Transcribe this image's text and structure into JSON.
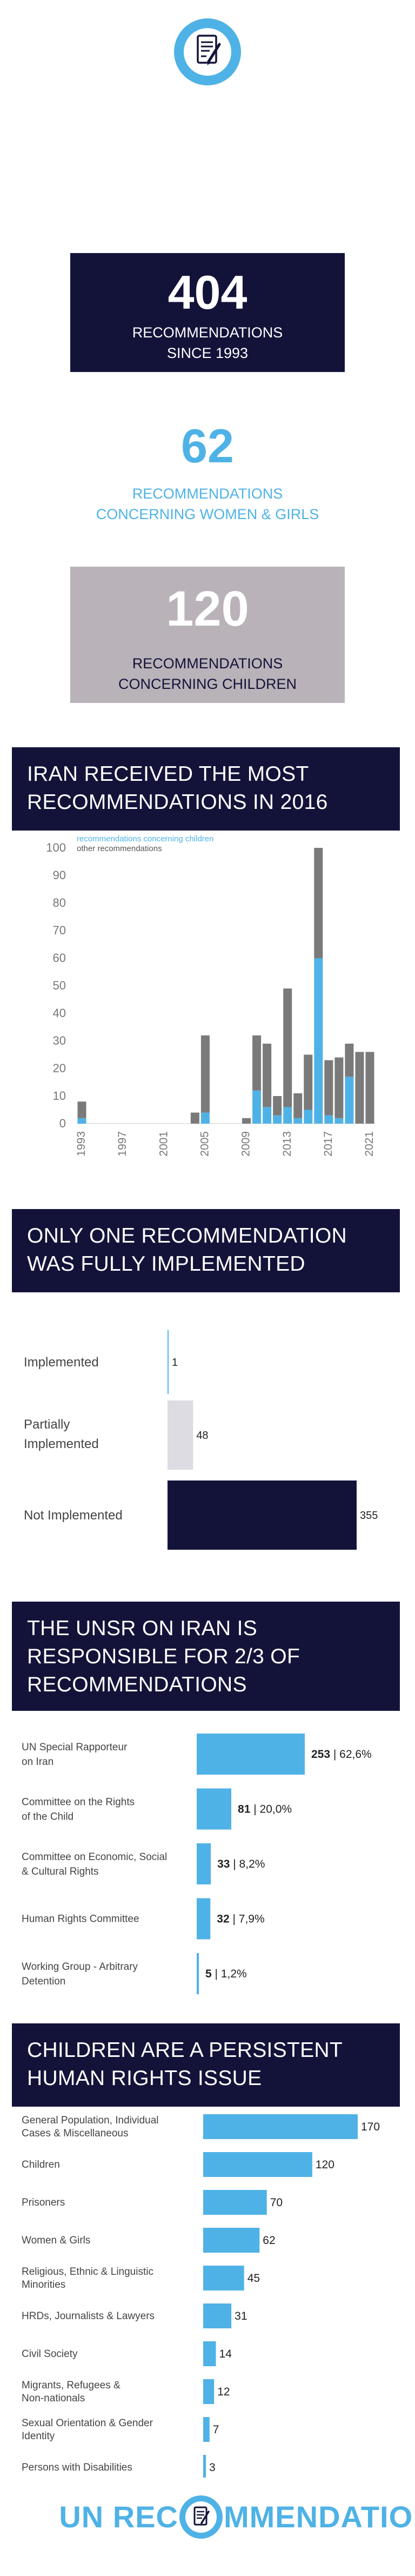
{
  "icon": "document-pen-icon",
  "colors": {
    "navy": "#13133a",
    "blue": "#4fb2e6",
    "gray": "#b9b2b8",
    "bargray": "#7a7a7a",
    "lightgray": "#dcdce2"
  },
  "stats": [
    {
      "number": "404",
      "line1": "RECOMMENDATIONS",
      "line2": "SINCE 1993"
    },
    {
      "number": "62",
      "line1": "RECOMMENDATIONS",
      "line2": "CONCERNING WOMEN & GIRLS"
    },
    {
      "number": "120",
      "line1": "RECOMMENDATIONS",
      "line2": "CONCERNING CHILDREN"
    }
  ],
  "sections": [
    {
      "line1": "IRAN RECEIVED THE MOST",
      "line2": "RECOMMENDATIONS IN 2016"
    },
    {
      "line1": "ONLY ONE RECOMMENDATION",
      "line2": "WAS FULLY IMPLEMENTED"
    },
    {
      "line1": "THE UNSR ON IRAN IS",
      "line2": "RESPONSIBLE FOR 2/3 OF",
      "line3": "RECOMMENDATIONS"
    },
    {
      "line1": "CHILDREN ARE A PERSISTENT",
      "line2": "HUMAN RIGHTS ISSUE"
    }
  ],
  "chart_data": [
    {
      "type": "bar",
      "stacked": true,
      "legend": [
        "recommendations concerning children",
        "other recommendations"
      ],
      "legend_position": "top-left",
      "x": [
        1993,
        1994,
        1995,
        1996,
        1997,
        1998,
        1999,
        2000,
        2001,
        2002,
        2003,
        2004,
        2005,
        2006,
        2007,
        2008,
        2009,
        2010,
        2011,
        2012,
        2013,
        2014,
        2015,
        2016,
        2017,
        2018,
        2019,
        2020,
        2021
      ],
      "x_tick_labels": [
        "1993",
        "1997",
        "2001",
        "2005",
        "2009",
        "2013",
        "2017",
        "2021"
      ],
      "series": [
        {
          "name": "recommendations concerning children",
          "values": [
            2,
            0,
            0,
            0,
            0,
            0,
            0,
            0,
            0,
            0,
            0,
            0,
            4,
            0,
            0,
            0,
            0,
            12,
            6,
            3,
            6,
            2,
            5,
            60,
            3,
            2,
            17,
            0,
            0
          ]
        },
        {
          "name": "other recommendations",
          "values": [
            6,
            0,
            0,
            0,
            0,
            0,
            0,
            0,
            0,
            0,
            0,
            4,
            28,
            0,
            0,
            0,
            2,
            20,
            23,
            7,
            43,
            9,
            20,
            40,
            20,
            22,
            12,
            26,
            26
          ]
        }
      ],
      "ylim": [
        0,
        100
      ],
      "yticks": [
        0,
        10,
        20,
        30,
        40,
        50,
        60,
        70,
        80,
        90,
        100
      ],
      "grid": false
    },
    {
      "type": "bar",
      "orientation": "horizontal",
      "categories": [
        "Implemented",
        "Partially Implemented",
        "Not Implemented"
      ],
      "values": [
        1,
        48,
        355
      ],
      "value_labels": [
        "1",
        "48",
        "355"
      ]
    },
    {
      "type": "bar",
      "orientation": "horizontal",
      "categories": [
        "UN Special Rapporteur on Iran",
        "Committee on the Rights of the Child",
        "Committee on Economic, Social & Cultural Rights",
        "Human Rights Committee",
        "Working Group - Arbitrary Detention"
      ],
      "category_lines": [
        [
          "UN Special Rapporteur",
          "on Iran"
        ],
        [
          "Committee on the Rights",
          "of the Child"
        ],
        [
          "Committee on Economic, Social",
          "& Cultural Rights"
        ],
        [
          "Human Rights Committee"
        ],
        [
          "Working Group - Arbitrary",
          "Detention"
        ]
      ],
      "values": [
        253,
        81,
        33,
        32,
        5
      ],
      "percents": [
        "62,6%",
        "20,0%",
        "8,2%",
        "7,9%",
        "1,2%"
      ]
    },
    {
      "type": "bar",
      "orientation": "horizontal",
      "categories": [
        "General Population, Individual Cases & Miscellaneous",
        "Children",
        "Prisoners",
        "Women & Girls",
        "Religious, Ethnic & Linguistic Minorities",
        "HRDs, Journalists & Lawyers",
        "Civil Society",
        "Migrants, Refugees & Non-nationals",
        "Sexual Orientation & Gender Identity",
        "Persons with Disabilities"
      ],
      "category_lines": [
        [
          "General Population, Individual",
          "Cases & Miscellaneous"
        ],
        [
          "Children"
        ],
        [
          "Prisoners"
        ],
        [
          "Women & Girls"
        ],
        [
          "Religious, Ethnic & Linguistic",
          "Minorities"
        ],
        [
          "HRDs, Journalists & Lawyers"
        ],
        [
          "Civil Society"
        ],
        [
          "Migrants, Refugees &",
          "Non-nationals"
        ],
        [
          "Sexual Orientation & Gender",
          "Identity"
        ],
        [
          "Persons with Disabilities"
        ]
      ],
      "values": [
        170,
        120,
        70,
        62,
        45,
        31,
        14,
        12,
        7,
        3
      ]
    }
  ],
  "footer": {
    "left": "UN REC",
    "right": "MMENDATIONS",
    "icon": "document-pen-icon"
  }
}
